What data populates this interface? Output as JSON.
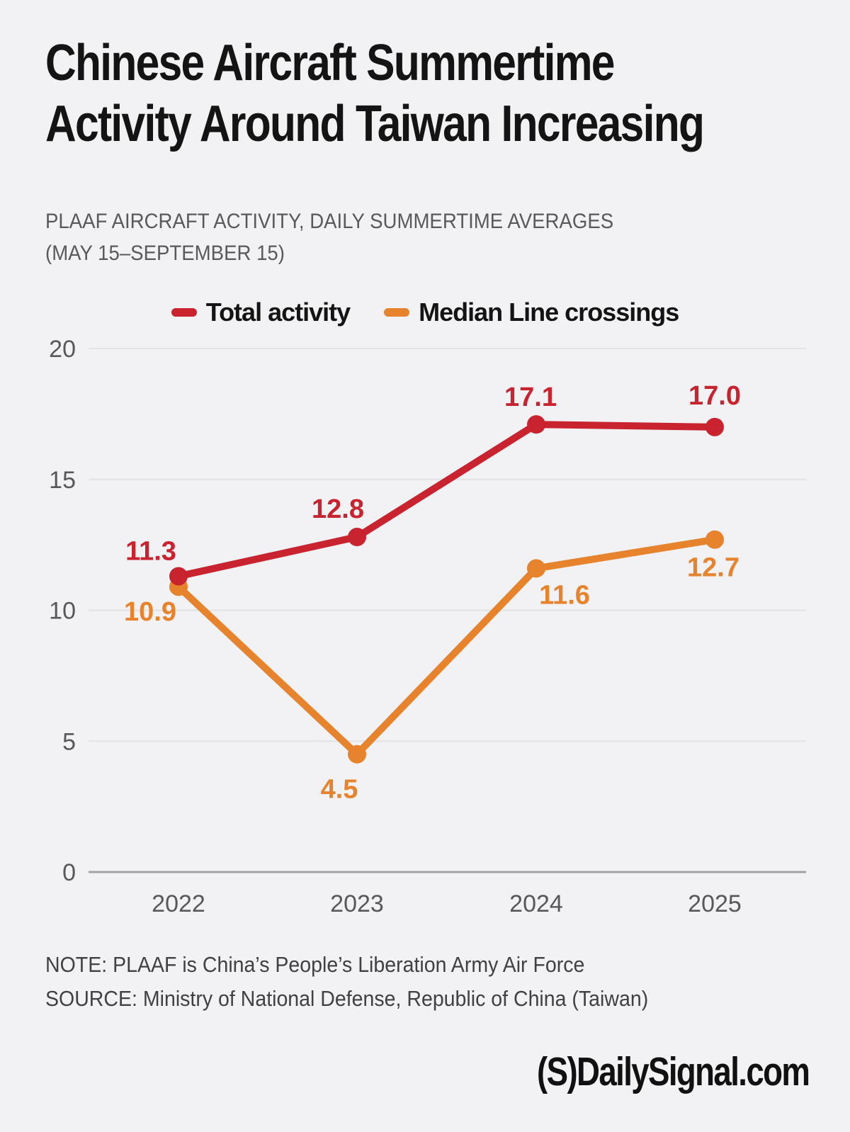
{
  "page": {
    "background_color": "#f2f2f4"
  },
  "header": {
    "title_line1": "Chinese Aircraft Summertime",
    "title_line2": "Activity Around Taiwan Increasing",
    "subtitle_line1": "PLAAF AIRCRAFT ACTIVITY, DAILY SUMMERTIME AVERAGES",
    "subtitle_line2": "(MAY 15–SEPTEMBER 15)"
  },
  "chart_data": {
    "type": "line",
    "categories": [
      "2022",
      "2023",
      "2024",
      "2025"
    ],
    "series": [
      {
        "name": "Total activity",
        "color": "#c9232f",
        "values": [
          11.3,
          12.8,
          17.1,
          17.0
        ],
        "labels": [
          "11.3",
          "12.8",
          "17.1",
          "17.0"
        ],
        "label_offsets": [
          [
            -39,
            -36
          ],
          [
            -27,
            -40
          ],
          [
            -8,
            -39
          ],
          [
            0,
            -45
          ]
        ]
      },
      {
        "name": "Median Line crossings",
        "color": "#e6832c",
        "values": [
          10.9,
          4.5,
          11.6,
          12.7
        ],
        "labels": [
          "10.9",
          "4.5",
          "11.6",
          "12.7"
        ],
        "label_offsets": [
          [
            -40,
            35
          ],
          [
            -25,
            49
          ],
          [
            40,
            37
          ],
          [
            -2,
            39
          ]
        ]
      }
    ],
    "title": "PLAAF aircraft activity, daily summertime averages (May 15–September 15)",
    "xlabel": "",
    "ylabel": "",
    "ylim": [
      0,
      20
    ],
    "yticks": [
      0,
      5,
      10,
      15,
      20
    ],
    "grid": true,
    "legend_position": "top-center",
    "axis_text_color": "#58585a",
    "grid_color": "#e3e3e5",
    "zero_line_color": "#a3a3a5"
  },
  "footer": {
    "note_line": "NOTE: PLAAF is China’s People’s Liberation Army Air Force",
    "source_line": "SOURCE: Ministry of National Defense, Republic of China (Taiwan)"
  },
  "logo": {
    "text": "(S)DailySignal.com"
  }
}
